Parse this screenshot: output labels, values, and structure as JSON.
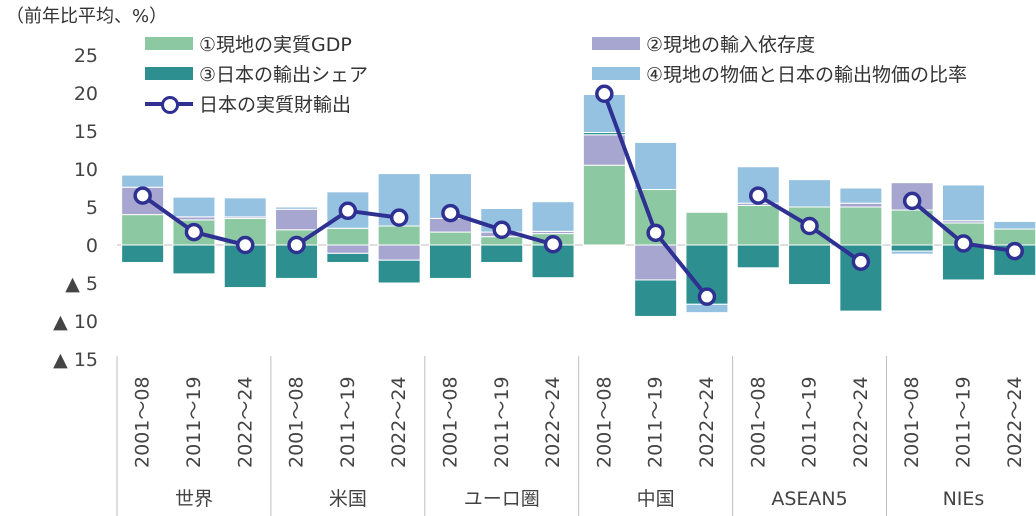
{
  "unit_label": "（前年比平均、%）",
  "colors": {
    "gdp": "#8cc8a2",
    "import_dep": "#a6a6d0",
    "export_share": "#2e8f91",
    "price_ratio": "#96c2e2",
    "line": "#2e3192"
  },
  "legend": {
    "gdp": "①現地の実質GDP",
    "import_dep": "②現地の輸入依存度",
    "export_share": "③日本の輸出シェア",
    "price_ratio": "④現地の物価と日本の輸出物価の比率",
    "line": "日本の実質財輸出"
  },
  "chart_data": {
    "type": "bar",
    "stacked": true,
    "ylim": [
      -15,
      25
    ],
    "yticks": [
      {
        "value": 25,
        "label": "25"
      },
      {
        "value": 20,
        "label": "20"
      },
      {
        "value": 15,
        "label": "15"
      },
      {
        "value": 10,
        "label": "10"
      },
      {
        "value": 5,
        "label": "5"
      },
      {
        "value": 0,
        "label": "0"
      },
      {
        "value": -5,
        "label": "▲ 5"
      },
      {
        "value": -10,
        "label": "▲ 10"
      },
      {
        "value": -15,
        "label": "▲ 15"
      }
    ],
    "groups": [
      {
        "name": "世界",
        "periods": [
          "2001～08",
          "2011～19",
          "2022～24"
        ]
      },
      {
        "name": "米国",
        "periods": [
          "2001～08",
          "2011～19",
          "2022～24"
        ]
      },
      {
        "name": "ユーロ圏",
        "periods": [
          "2001～08",
          "2011～19",
          "2022～24"
        ]
      },
      {
        "name": "中国",
        "periods": [
          "2001～08",
          "2011～19",
          "2022～24"
        ]
      },
      {
        "name": "ASEAN5",
        "periods": [
          "2001～08",
          "2011～19",
          "2022～24"
        ]
      },
      {
        "name": "NIEs",
        "periods": [
          "2001～08",
          "2011～19",
          "2022～24"
        ]
      }
    ],
    "series": [
      {
        "key": "gdp",
        "name": "①現地の実質GDP",
        "values": [
          4.0,
          3.3,
          3.5,
          2.0,
          2.2,
          2.5,
          1.7,
          1.1,
          1.5,
          10.5,
          7.3,
          4.3,
          5.2,
          5.0,
          5.0,
          4.6,
          2.9,
          2.1
        ]
      },
      {
        "key": "import_dep",
        "name": "②現地の輸入依存度",
        "values": [
          3.6,
          0.4,
          0.2,
          2.7,
          -1.1,
          -2.0,
          1.8,
          0.6,
          0.3,
          4.0,
          -4.6,
          0.0,
          0.3,
          0.0,
          0.5,
          3.6,
          0.3,
          0.0
        ]
      },
      {
        "key": "export_share",
        "name": "③日本の輸出シェア",
        "values": [
          -2.3,
          -3.8,
          -5.6,
          -4.4,
          -1.2,
          -3.0,
          -4.4,
          -2.3,
          -4.3,
          0.3,
          -4.8,
          -7.8,
          -3.0,
          -5.2,
          -8.7,
          -0.8,
          -4.6,
          -4.0
        ]
      },
      {
        "key": "price_ratio",
        "name": "④現地の物価と日本の輸出物価の比率",
        "values": [
          1.6,
          2.6,
          2.5,
          0.3,
          4.8,
          6.9,
          5.9,
          3.1,
          3.9,
          5.0,
          6.2,
          -1.1,
          4.8,
          3.6,
          2.0,
          -0.4,
          4.7,
          1.0
        ]
      },
      {
        "key": "line",
        "name": "日本の実質財輸出",
        "type": "line",
        "values": [
          6.5,
          1.7,
          0.0,
          0.0,
          4.5,
          3.6,
          4.2,
          2.0,
          0.1,
          19.9,
          1.6,
          -6.8,
          6.5,
          2.5,
          -2.2,
          5.8,
          0.2,
          -0.8
        ]
      }
    ]
  }
}
